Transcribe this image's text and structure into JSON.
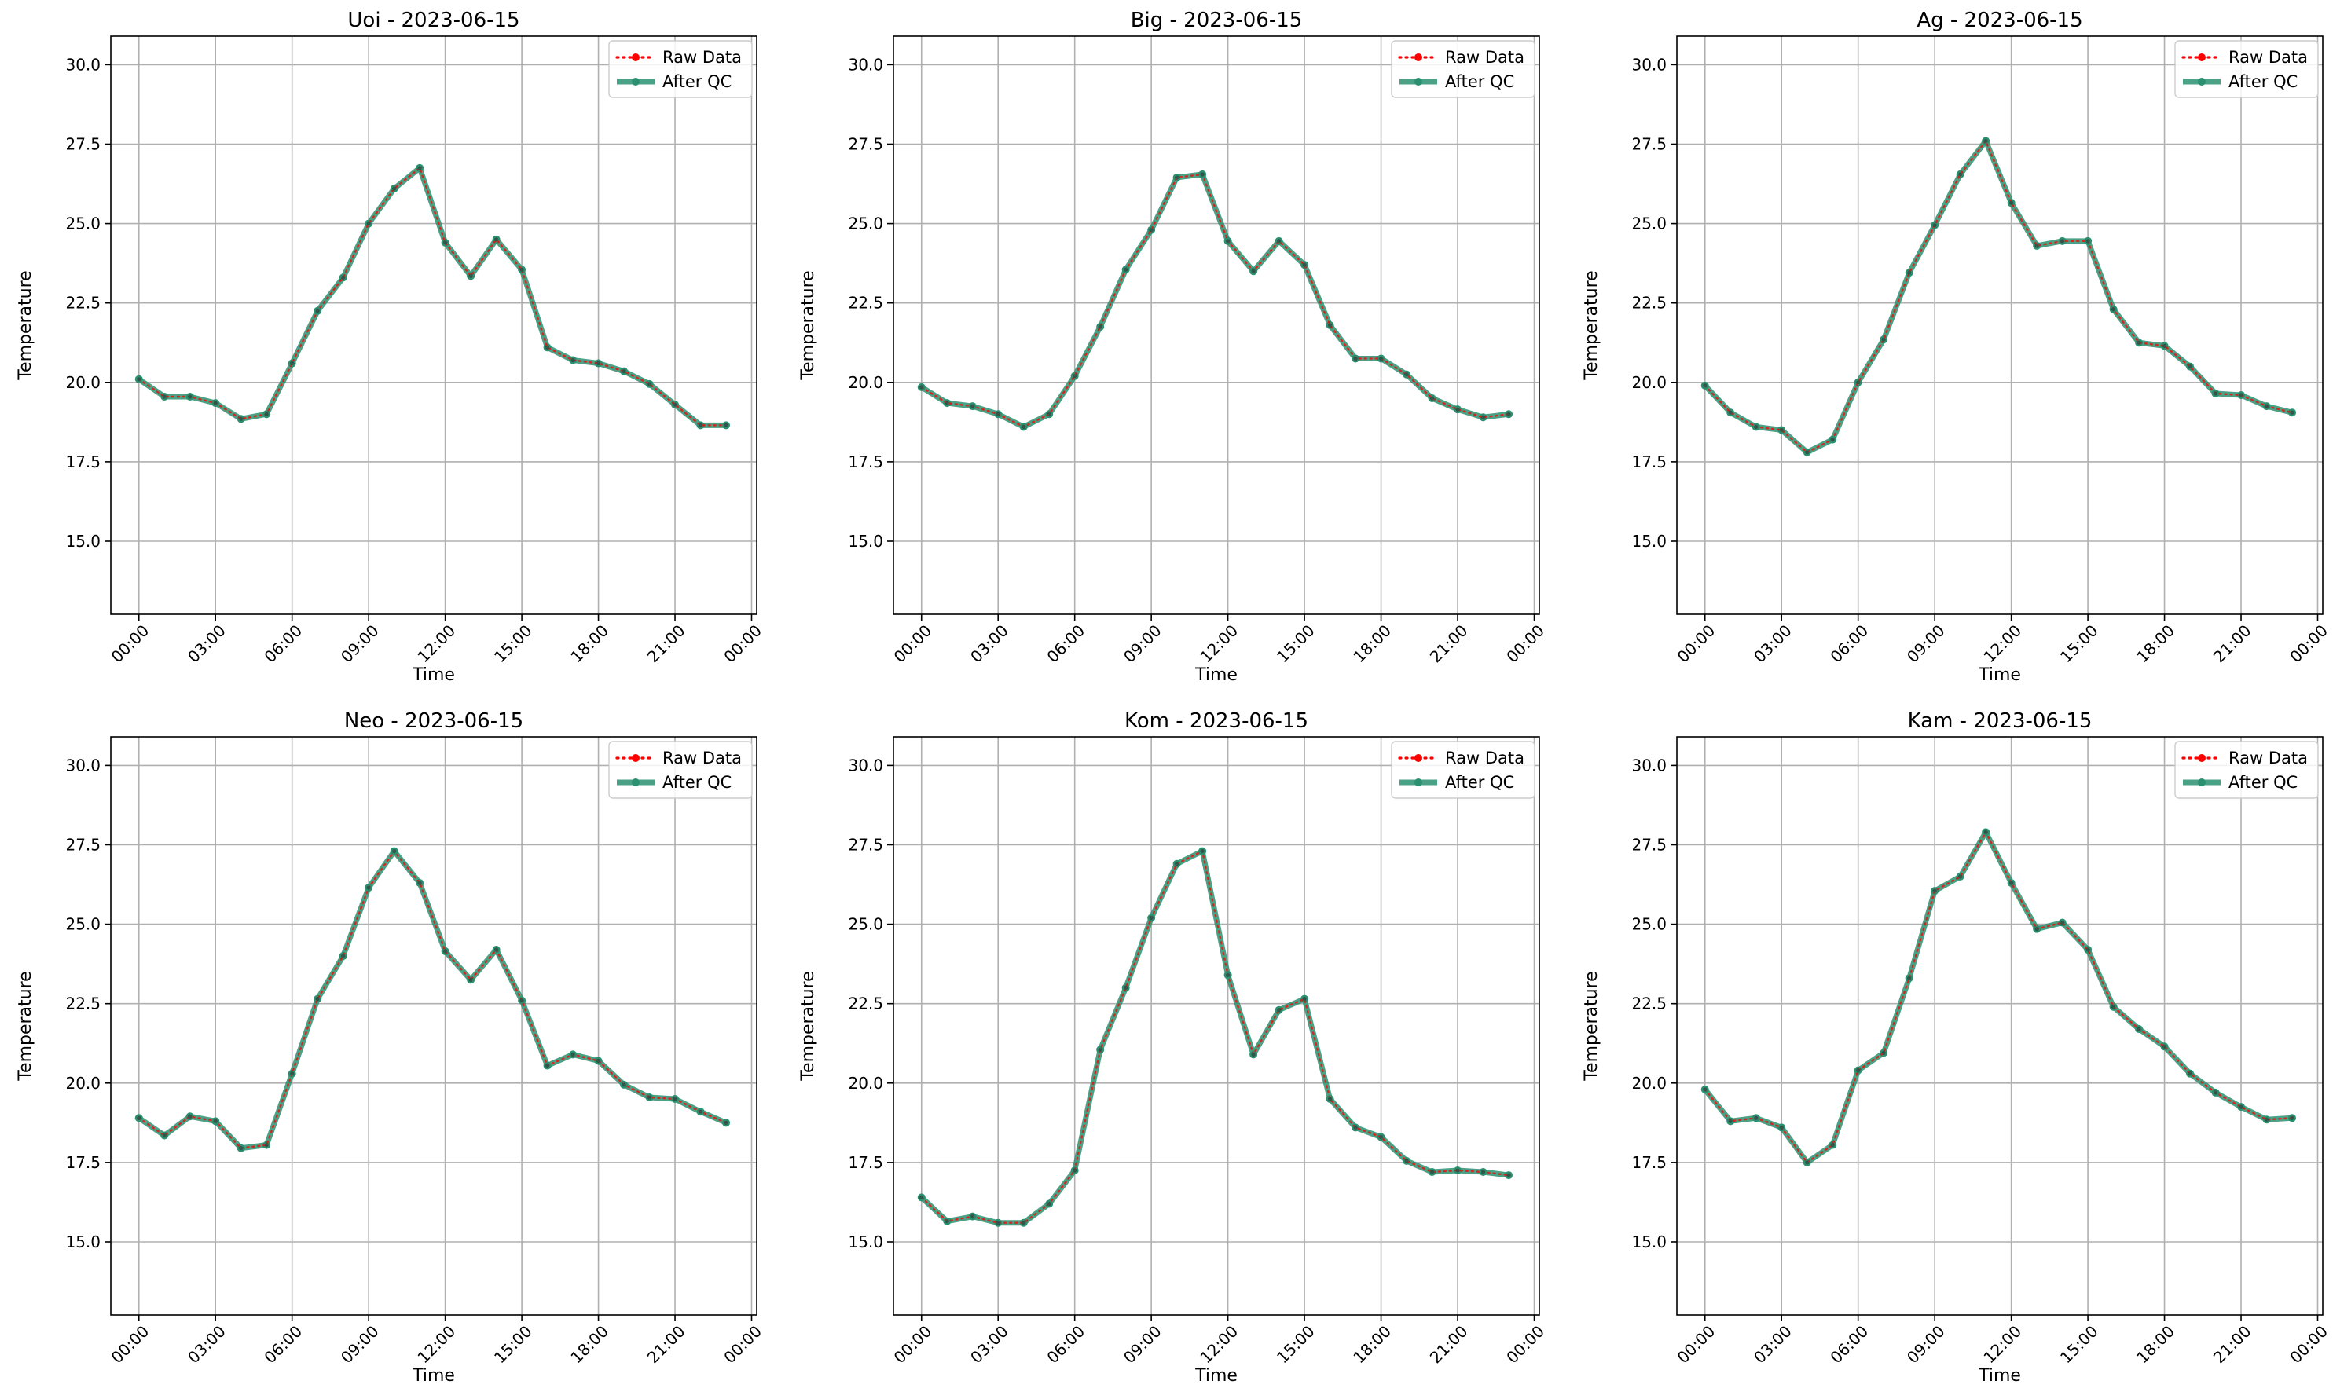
{
  "figure": {
    "ylabel": "Temperature",
    "xlabel": "Time",
    "legend": [
      "Raw Data",
      "After QC"
    ]
  },
  "colors": {
    "raw": "#ff0000",
    "qc": "#2a9070",
    "grid": "#b0b0b0",
    "axes": "#000000"
  },
  "chart_data": [
    {
      "type": "line",
      "title": "Uoi - 2023-06-15",
      "xlabel": "Time",
      "ylabel": "Temperature",
      "x": [
        "00:00",
        "01:00",
        "02:00",
        "03:00",
        "04:00",
        "05:00",
        "06:00",
        "07:00",
        "08:00",
        "09:00",
        "10:00",
        "11:00",
        "12:00",
        "13:00",
        "14:00",
        "15:00",
        "16:00",
        "17:00",
        "18:00",
        "19:00",
        "20:00",
        "21:00",
        "22:00",
        "23:00"
      ],
      "xticks": [
        "00:00",
        "03:00",
        "06:00",
        "09:00",
        "12:00",
        "15:00",
        "18:00",
        "21:00",
        "00:00"
      ],
      "yticks": [
        "15.0",
        "17.5",
        "20.0",
        "22.5",
        "25.0",
        "27.5",
        "30.0"
      ],
      "ylim": [
        12.7,
        30.9
      ],
      "series": [
        {
          "name": "Raw Data",
          "values": [
            20.1,
            19.55,
            19.55,
            19.35,
            18.85,
            19.0,
            20.6,
            22.25,
            23.3,
            25.0,
            26.1,
            26.75,
            24.4,
            23.35,
            24.5,
            23.55,
            21.1,
            20.7,
            20.6,
            20.35,
            19.95,
            19.3,
            18.65,
            18.65
          ]
        },
        {
          "name": "After QC",
          "values": [
            20.1,
            19.55,
            19.55,
            19.35,
            18.85,
            19.0,
            20.6,
            22.25,
            23.3,
            25.0,
            26.1,
            26.75,
            24.4,
            23.35,
            24.5,
            23.55,
            21.1,
            20.7,
            20.6,
            20.35,
            19.95,
            19.3,
            18.65,
            18.65
          ]
        }
      ],
      "legend_position": "upper right",
      "grid": true
    },
    {
      "type": "line",
      "title": "Big - 2023-06-15",
      "xlabel": "Time",
      "ylabel": "Temperature",
      "x": [
        "00:00",
        "01:00",
        "02:00",
        "03:00",
        "04:00",
        "05:00",
        "06:00",
        "07:00",
        "08:00",
        "09:00",
        "10:00",
        "11:00",
        "12:00",
        "13:00",
        "14:00",
        "15:00",
        "16:00",
        "17:00",
        "18:00",
        "19:00",
        "20:00",
        "21:00",
        "22:00",
        "23:00"
      ],
      "xticks": [
        "00:00",
        "03:00",
        "06:00",
        "09:00",
        "12:00",
        "15:00",
        "18:00",
        "21:00",
        "00:00"
      ],
      "yticks": [
        "15.0",
        "17.5",
        "20.0",
        "22.5",
        "25.0",
        "27.5",
        "30.0"
      ],
      "ylim": [
        12.7,
        30.9
      ],
      "series": [
        {
          "name": "Raw Data",
          "values": [
            19.85,
            19.35,
            19.25,
            19.0,
            18.6,
            19.0,
            20.2,
            21.75,
            23.55,
            24.8,
            26.45,
            26.55,
            24.45,
            23.5,
            24.45,
            23.7,
            21.8,
            20.75,
            20.75,
            20.25,
            19.5,
            19.15,
            18.9,
            19.0
          ]
        },
        {
          "name": "After QC",
          "values": [
            19.85,
            19.35,
            19.25,
            19.0,
            18.6,
            19.0,
            20.2,
            21.75,
            23.55,
            24.8,
            26.45,
            26.55,
            24.45,
            23.5,
            24.45,
            23.7,
            21.8,
            20.75,
            20.75,
            20.25,
            19.5,
            19.15,
            18.9,
            19.0
          ]
        }
      ],
      "legend_position": "upper right",
      "grid": true
    },
    {
      "type": "line",
      "title": "Ag - 2023-06-15",
      "xlabel": "Time",
      "ylabel": "Temperature",
      "x": [
        "00:00",
        "01:00",
        "02:00",
        "03:00",
        "04:00",
        "05:00",
        "06:00",
        "07:00",
        "08:00",
        "09:00",
        "10:00",
        "11:00",
        "12:00",
        "13:00",
        "14:00",
        "15:00",
        "16:00",
        "17:00",
        "18:00",
        "19:00",
        "20:00",
        "21:00",
        "22:00",
        "23:00"
      ],
      "xticks": [
        "00:00",
        "03:00",
        "06:00",
        "09:00",
        "12:00",
        "15:00",
        "18:00",
        "21:00",
        "00:00"
      ],
      "yticks": [
        "15.0",
        "17.5",
        "20.0",
        "22.5",
        "25.0",
        "27.5",
        "30.0"
      ],
      "ylim": [
        12.7,
        30.9
      ],
      "series": [
        {
          "name": "Raw Data",
          "values": [
            19.9,
            19.05,
            18.6,
            18.5,
            17.8,
            18.2,
            20.0,
            21.35,
            23.45,
            24.95,
            26.55,
            27.6,
            25.65,
            24.3,
            24.45,
            24.45,
            22.3,
            21.25,
            21.15,
            20.5,
            19.65,
            19.6,
            19.25,
            19.05
          ]
        },
        {
          "name": "After QC",
          "values": [
            19.9,
            19.05,
            18.6,
            18.5,
            17.8,
            18.2,
            20.0,
            21.35,
            23.45,
            24.95,
            26.55,
            27.6,
            25.65,
            24.3,
            24.45,
            24.45,
            22.3,
            21.25,
            21.15,
            20.5,
            19.65,
            19.6,
            19.25,
            19.05
          ]
        }
      ],
      "legend_position": "upper right",
      "grid": true
    },
    {
      "type": "line",
      "title": "Neo - 2023-06-15",
      "xlabel": "Time",
      "ylabel": "Temperature",
      "x": [
        "00:00",
        "01:00",
        "02:00",
        "03:00",
        "04:00",
        "05:00",
        "06:00",
        "07:00",
        "08:00",
        "09:00",
        "10:00",
        "11:00",
        "12:00",
        "13:00",
        "14:00",
        "15:00",
        "16:00",
        "17:00",
        "18:00",
        "19:00",
        "20:00",
        "21:00",
        "22:00",
        "23:00"
      ],
      "xticks": [
        "00:00",
        "03:00",
        "06:00",
        "09:00",
        "12:00",
        "15:00",
        "18:00",
        "21:00",
        "00:00"
      ],
      "yticks": [
        "15.0",
        "17.5",
        "20.0",
        "22.5",
        "25.0",
        "27.5",
        "30.0"
      ],
      "ylim": [
        12.7,
        30.9
      ],
      "series": [
        {
          "name": "Raw Data",
          "values": [
            18.9,
            18.35,
            18.95,
            18.8,
            17.95,
            18.05,
            20.3,
            22.65,
            24.0,
            26.15,
            27.3,
            26.3,
            24.15,
            23.25,
            24.2,
            22.6,
            20.55,
            20.9,
            20.7,
            19.95,
            19.55,
            19.5,
            19.1,
            18.75
          ]
        },
        {
          "name": "After QC",
          "values": [
            18.9,
            18.35,
            18.95,
            18.8,
            17.95,
            18.05,
            20.3,
            22.65,
            24.0,
            26.15,
            27.3,
            26.3,
            24.15,
            23.25,
            24.2,
            22.6,
            20.55,
            20.9,
            20.7,
            19.95,
            19.55,
            19.5,
            19.1,
            18.75
          ]
        }
      ],
      "legend_position": "upper right",
      "grid": true
    },
    {
      "type": "line",
      "title": "Kom - 2023-06-15",
      "xlabel": "Time",
      "ylabel": "Temperature",
      "x": [
        "00:00",
        "01:00",
        "02:00",
        "03:00",
        "04:00",
        "05:00",
        "06:00",
        "07:00",
        "08:00",
        "09:00",
        "10:00",
        "11:00",
        "12:00",
        "13:00",
        "14:00",
        "15:00",
        "16:00",
        "17:00",
        "18:00",
        "19:00",
        "20:00",
        "21:00",
        "22:00",
        "23:00"
      ],
      "xticks": [
        "00:00",
        "03:00",
        "06:00",
        "09:00",
        "12:00",
        "15:00",
        "18:00",
        "21:00",
        "00:00"
      ],
      "yticks": [
        "15.0",
        "17.5",
        "20.0",
        "22.5",
        "25.0",
        "27.5",
        "30.0"
      ],
      "ylim": [
        12.7,
        30.9
      ],
      "series": [
        {
          "name": "Raw Data",
          "values": [
            16.4,
            15.65,
            15.8,
            15.6,
            15.6,
            16.2,
            17.25,
            21.05,
            23.0,
            25.2,
            26.9,
            27.3,
            23.4,
            20.9,
            22.3,
            22.65,
            19.5,
            18.6,
            18.3,
            17.55,
            17.2,
            17.25,
            17.2,
            17.1
          ]
        },
        {
          "name": "After QC",
          "values": [
            16.4,
            15.65,
            15.8,
            15.6,
            15.6,
            16.2,
            17.25,
            21.05,
            23.0,
            25.2,
            26.9,
            27.3,
            23.4,
            20.9,
            22.3,
            22.65,
            19.5,
            18.6,
            18.3,
            17.55,
            17.2,
            17.25,
            17.2,
            17.1
          ]
        }
      ],
      "legend_position": "upper right",
      "grid": true
    },
    {
      "type": "line",
      "title": "Kam - 2023-06-15",
      "xlabel": "Time",
      "ylabel": "Temperature",
      "x": [
        "00:00",
        "01:00",
        "02:00",
        "03:00",
        "04:00",
        "05:00",
        "06:00",
        "07:00",
        "08:00",
        "09:00",
        "10:00",
        "11:00",
        "12:00",
        "13:00",
        "14:00",
        "15:00",
        "16:00",
        "17:00",
        "18:00",
        "19:00",
        "20:00",
        "21:00",
        "22:00",
        "23:00"
      ],
      "xticks": [
        "00:00",
        "03:00",
        "06:00",
        "09:00",
        "12:00",
        "15:00",
        "18:00",
        "21:00",
        "00:00"
      ],
      "yticks": [
        "15.0",
        "17.5",
        "20.0",
        "22.5",
        "25.0",
        "27.5",
        "30.0"
      ],
      "ylim": [
        12.7,
        30.9
      ],
      "series": [
        {
          "name": "Raw Data",
          "values": [
            19.8,
            18.8,
            18.9,
            18.6,
            17.5,
            18.05,
            20.4,
            20.95,
            23.3,
            26.05,
            26.5,
            27.9,
            26.3,
            24.85,
            25.05,
            24.2,
            22.4,
            21.7,
            21.15,
            20.3,
            19.7,
            19.25,
            18.85,
            18.9
          ]
        },
        {
          "name": "After QC",
          "values": [
            19.8,
            18.8,
            18.9,
            18.6,
            17.5,
            18.05,
            20.4,
            20.95,
            23.3,
            26.05,
            26.5,
            27.9,
            26.3,
            24.85,
            25.05,
            24.2,
            22.4,
            21.7,
            21.15,
            20.3,
            19.7,
            19.25,
            18.85,
            18.9
          ]
        }
      ],
      "legend_position": "upper right",
      "grid": true
    }
  ]
}
